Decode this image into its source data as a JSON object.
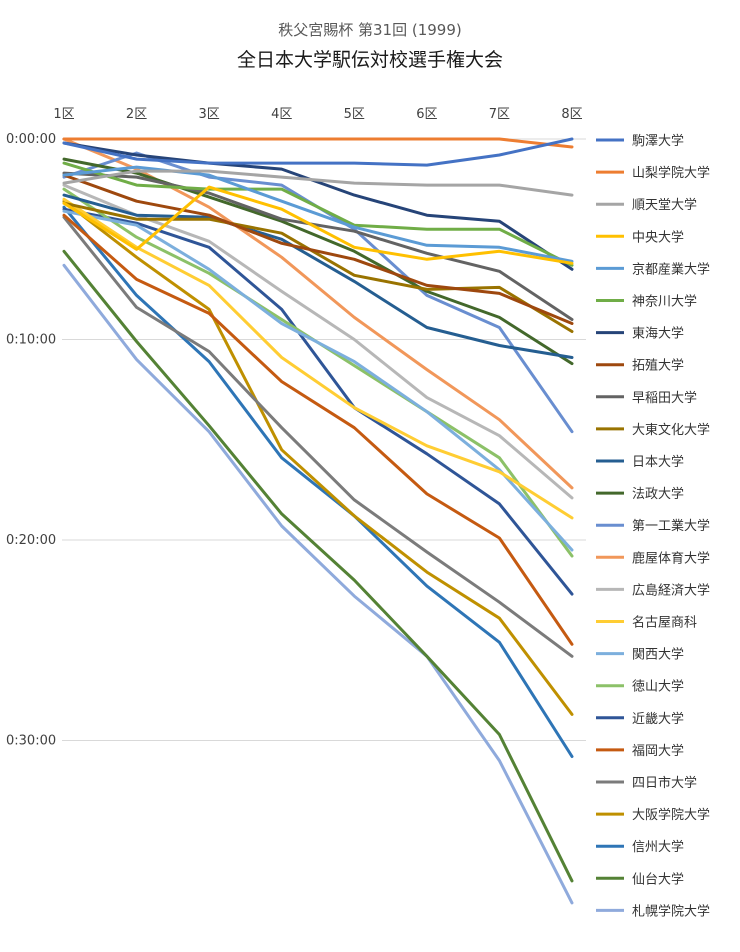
{
  "chart_data": {
    "type": "line",
    "subtitle": "秩父宮賜杯 第31回 (1999)",
    "title": "全日本大学駅伝対校選手権大会",
    "categories": [
      "1区",
      "2区",
      "3区",
      "4区",
      "5区",
      "6区",
      "7区",
      "8区"
    ],
    "y_tick_labels": [
      "0:00:00",
      "0:10:00",
      "0:20:00",
      "0:30:00"
    ],
    "y_unit": "minutes behind leader",
    "y_range": [
      0,
      40
    ],
    "y_reversed": true,
    "grid": true,
    "legend_position": "right",
    "series": [
      {
        "name": "駒澤大学",
        "color": "#4472C4",
        "values": [
          0.2,
          1.0,
          1.2,
          1.2,
          1.2,
          1.3,
          0.8,
          0.0
        ]
      },
      {
        "name": "山梨学院大学",
        "color": "#ED7D31",
        "values": [
          0.0,
          0.0,
          0.0,
          0.0,
          0.0,
          0.0,
          0.0,
          0.4
        ]
      },
      {
        "name": "順天堂大学",
        "color": "#A5A5A5",
        "values": [
          2.2,
          1.6,
          1.6,
          1.9,
          2.2,
          2.3,
          2.3,
          2.8
        ]
      },
      {
        "name": "中央大学",
        "color": "#FFC000",
        "values": [
          3.2,
          5.5,
          2.4,
          3.5,
          5.4,
          6.0,
          5.6,
          6.2
        ]
      },
      {
        "name": "京都産業大学",
        "color": "#5B9BD5",
        "values": [
          1.8,
          1.4,
          1.8,
          3.1,
          4.4,
          5.3,
          5.4,
          6.1
        ]
      },
      {
        "name": "神奈川大学",
        "color": "#70AD47",
        "values": [
          1.2,
          2.3,
          2.5,
          2.5,
          4.3,
          4.5,
          4.5,
          6.3
        ]
      },
      {
        "name": "東海大学",
        "color": "#264478",
        "values": [
          0.2,
          0.8,
          1.2,
          1.5,
          2.8,
          3.8,
          4.1,
          6.5
        ]
      },
      {
        "name": "拓殖大学",
        "color": "#9E480E",
        "values": [
          1.8,
          3.1,
          3.8,
          5.2,
          6.0,
          7.3,
          7.7,
          9.2
        ]
      },
      {
        "name": "早稲田大学",
        "color": "#636363",
        "values": [
          1.7,
          1.9,
          2.7,
          4.0,
          4.6,
          5.7,
          6.6,
          9.0
        ]
      },
      {
        "name": "大東文化大学",
        "color": "#997300",
        "values": [
          3.2,
          4.0,
          4.0,
          4.7,
          6.8,
          7.5,
          7.4,
          9.6
        ]
      },
      {
        "name": "日本大学",
        "color": "#255E91",
        "values": [
          2.8,
          3.8,
          3.9,
          5.0,
          7.1,
          9.4,
          10.3,
          10.9
        ]
      },
      {
        "name": "法政大学",
        "color": "#43682B",
        "values": [
          1.0,
          1.7,
          2.9,
          4.1,
          5.6,
          7.6,
          8.9,
          11.2
        ]
      },
      {
        "name": "第一工業大学",
        "color": "#698ED0",
        "values": [
          1.9,
          0.7,
          1.9,
          2.3,
          4.5,
          7.8,
          9.4,
          14.6
        ]
      },
      {
        "name": "鹿屋体育大学",
        "color": "#F1975A",
        "values": [
          0.0,
          1.5,
          3.4,
          5.9,
          8.9,
          11.5,
          14.0,
          17.4
        ]
      },
      {
        "name": "広島経済大学",
        "color": "#B7B7B7",
        "values": [
          2.3,
          3.8,
          5.1,
          7.6,
          10.0,
          12.9,
          14.8,
          17.9
        ]
      },
      {
        "name": "名古屋商科",
        "color": "#FFCD33",
        "values": [
          3.0,
          5.4,
          7.3,
          10.9,
          13.4,
          15.3,
          16.6,
          18.9
        ]
      },
      {
        "name": "関西大学",
        "color": "#7CAFDD",
        "values": [
          3.6,
          4.3,
          6.5,
          9.2,
          11.1,
          13.6,
          16.5,
          20.5
        ]
      },
      {
        "name": "徳山大学",
        "color": "#8CC168",
        "values": [
          2.5,
          4.9,
          6.7,
          9.0,
          11.3,
          13.6,
          15.9,
          20.8
        ]
      },
      {
        "name": "近畿大学",
        "color": "#2F5597",
        "values": [
          3.5,
          4.2,
          5.4,
          8.5,
          13.4,
          15.7,
          18.2,
          22.7
        ]
      },
      {
        "name": "福岡大学",
        "color": "#C55A11",
        "values": [
          3.8,
          7.0,
          8.7,
          12.1,
          14.4,
          17.7,
          19.9,
          25.2
        ]
      },
      {
        "name": "四日市大学",
        "color": "#7B7B7B",
        "values": [
          3.9,
          8.4,
          10.6,
          14.4,
          18.0,
          20.6,
          23.1,
          25.8
        ]
      },
      {
        "name": "大阪学院大学",
        "color": "#BF9000",
        "values": [
          3.1,
          5.9,
          8.5,
          15.5,
          18.8,
          21.6,
          23.9,
          28.7
        ]
      },
      {
        "name": "信州大学",
        "color": "#2E75B6",
        "values": [
          3.4,
          7.8,
          11.1,
          15.9,
          18.8,
          22.3,
          25.1,
          30.8
        ]
      },
      {
        "name": "仙台大学",
        "color": "#548235",
        "values": [
          5.6,
          10.1,
          14.3,
          18.7,
          22.0,
          25.8,
          29.7,
          37.0
        ]
      },
      {
        "name": "札幌学院大学",
        "color": "#8FAADC",
        "values": [
          6.3,
          11.0,
          14.6,
          19.3,
          22.8,
          25.8,
          31.0,
          38.1
        ]
      }
    ]
  }
}
